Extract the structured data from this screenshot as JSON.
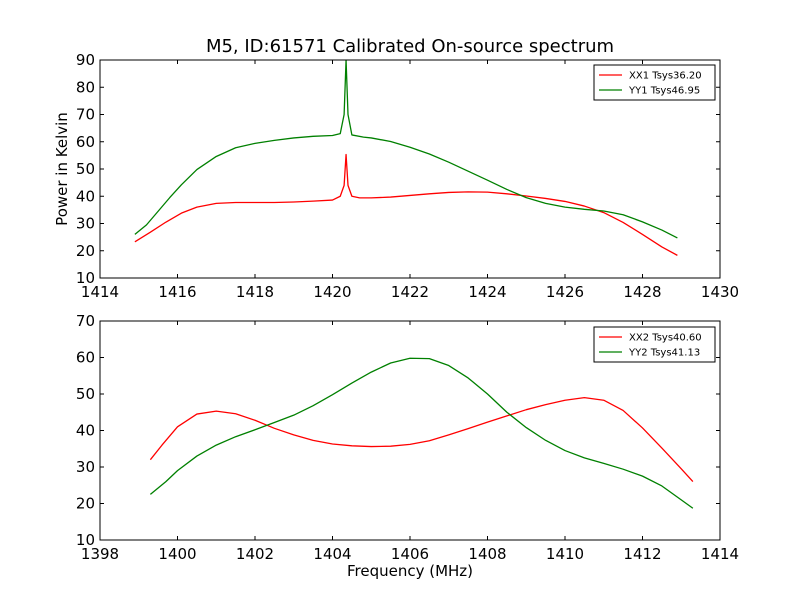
{
  "figure": {
    "title": "M5, ID:61571 Calibrated On-source spectrum"
  },
  "colors": {
    "red": "#ff0000",
    "green": "#008000"
  },
  "chart_data": [
    {
      "type": "line",
      "ylabel": "Power in Kelvin",
      "xlabel": "",
      "xlim": [
        1414,
        1430
      ],
      "ylim": [
        10,
        90
      ],
      "xticks": [
        1414,
        1416,
        1418,
        1420,
        1422,
        1424,
        1426,
        1428,
        1430
      ],
      "yticks": [
        10,
        20,
        30,
        40,
        50,
        60,
        70,
        80,
        90
      ],
      "grid": false,
      "legend": "top-right",
      "series": [
        {
          "name": "XX1 Tsys36.20",
          "color": "#ff0000",
          "points": [
            [
              1414.9,
              23.3
            ],
            [
              1415.3,
              26.8
            ],
            [
              1415.7,
              30.5
            ],
            [
              1416.1,
              33.8
            ],
            [
              1416.5,
              36.0
            ],
            [
              1417.0,
              37.4
            ],
            [
              1417.5,
              37.7
            ],
            [
              1418.0,
              37.7
            ],
            [
              1418.5,
              37.7
            ],
            [
              1419.0,
              37.9
            ],
            [
              1419.5,
              38.2
            ],
            [
              1420.0,
              38.6
            ],
            [
              1420.2,
              40.0
            ],
            [
              1420.3,
              44.0
            ],
            [
              1420.35,
              55.3
            ],
            [
              1420.4,
              44.0
            ],
            [
              1420.5,
              40.0
            ],
            [
              1420.7,
              39.4
            ],
            [
              1421.0,
              39.4
            ],
            [
              1421.5,
              39.7
            ],
            [
              1422.0,
              40.3
            ],
            [
              1422.5,
              40.9
            ],
            [
              1423.0,
              41.4
            ],
            [
              1423.5,
              41.6
            ],
            [
              1424.0,
              41.5
            ],
            [
              1424.5,
              40.9
            ],
            [
              1425.0,
              40.1
            ],
            [
              1425.5,
              39.2
            ],
            [
              1426.0,
              38.1
            ],
            [
              1426.5,
              36.4
            ],
            [
              1427.0,
              34.0
            ],
            [
              1427.5,
              30.4
            ],
            [
              1428.0,
              26.0
            ],
            [
              1428.5,
              21.4
            ],
            [
              1428.9,
              18.3
            ]
          ]
        },
        {
          "name": "YY1 Tsys46.95",
          "color": "#008000",
          "points": [
            [
              1414.9,
              26.0
            ],
            [
              1415.2,
              29.5
            ],
            [
              1415.5,
              34.5
            ],
            [
              1415.8,
              39.5
            ],
            [
              1416.1,
              44.2
            ],
            [
              1416.5,
              49.8
            ],
            [
              1417.0,
              54.6
            ],
            [
              1417.5,
              57.8
            ],
            [
              1418.0,
              59.4
            ],
            [
              1418.5,
              60.5
            ],
            [
              1419.0,
              61.4
            ],
            [
              1419.5,
              62.0
            ],
            [
              1420.0,
              62.3
            ],
            [
              1420.2,
              63.0
            ],
            [
              1420.3,
              70.0
            ],
            [
              1420.35,
              90.0
            ],
            [
              1420.4,
              70.0
            ],
            [
              1420.5,
              62.5
            ],
            [
              1420.8,
              61.7
            ],
            [
              1421.0,
              61.4
            ],
            [
              1421.5,
              60.1
            ],
            [
              1422.0,
              58.0
            ],
            [
              1422.5,
              55.5
            ],
            [
              1423.0,
              52.5
            ],
            [
              1423.5,
              49.2
            ],
            [
              1424.0,
              45.9
            ],
            [
              1424.5,
              42.5
            ],
            [
              1425.0,
              39.5
            ],
            [
              1425.5,
              37.4
            ],
            [
              1426.0,
              36.0
            ],
            [
              1426.5,
              35.2
            ],
            [
              1427.0,
              34.6
            ],
            [
              1427.5,
              33.2
            ],
            [
              1428.0,
              30.6
            ],
            [
              1428.5,
              27.6
            ],
            [
              1428.9,
              24.7
            ]
          ]
        }
      ]
    },
    {
      "type": "line",
      "ylabel": "",
      "xlabel": "Frequency (MHz)",
      "xlim": [
        1398,
        1414
      ],
      "ylim": [
        10,
        70
      ],
      "xticks": [
        1398,
        1400,
        1402,
        1404,
        1406,
        1408,
        1410,
        1412,
        1414
      ],
      "yticks": [
        10,
        20,
        30,
        40,
        50,
        60,
        70
      ],
      "grid": false,
      "legend": "top-right",
      "series": [
        {
          "name": "XX2 Tsys40.60",
          "color": "#ff0000",
          "points": [
            [
              1399.3,
              32.0
            ],
            [
              1399.6,
              36.0
            ],
            [
              1400.0,
              41.0
            ],
            [
              1400.5,
              44.5
            ],
            [
              1401.0,
              45.3
            ],
            [
              1401.5,
              44.6
            ],
            [
              1402.0,
              42.8
            ],
            [
              1402.5,
              40.6
            ],
            [
              1403.0,
              38.8
            ],
            [
              1403.5,
              37.3
            ],
            [
              1404.0,
              36.3
            ],
            [
              1404.5,
              35.8
            ],
            [
              1405.0,
              35.6
            ],
            [
              1405.5,
              35.7
            ],
            [
              1406.0,
              36.2
            ],
            [
              1406.5,
              37.2
            ],
            [
              1407.0,
              38.8
            ],
            [
              1407.5,
              40.5
            ],
            [
              1408.0,
              42.3
            ],
            [
              1408.5,
              44.0
            ],
            [
              1409.0,
              45.7
            ],
            [
              1409.5,
              47.1
            ],
            [
              1410.0,
              48.3
            ],
            [
              1410.5,
              49.0
            ],
            [
              1411.0,
              48.3
            ],
            [
              1411.5,
              45.5
            ],
            [
              1412.0,
              40.7
            ],
            [
              1412.5,
              35.2
            ],
            [
              1413.0,
              29.5
            ],
            [
              1413.3,
              26.0
            ]
          ]
        },
        {
          "name": "YY2 Tsys41.13",
          "color": "#008000",
          "points": [
            [
              1399.3,
              22.5
            ],
            [
              1399.7,
              26.0
            ],
            [
              1400.0,
              29.0
            ],
            [
              1400.5,
              33.0
            ],
            [
              1401.0,
              36.0
            ],
            [
              1401.5,
              38.3
            ],
            [
              1402.0,
              40.2
            ],
            [
              1402.5,
              42.2
            ],
            [
              1403.0,
              44.2
            ],
            [
              1403.5,
              46.8
            ],
            [
              1404.0,
              49.8
            ],
            [
              1404.5,
              53.0
            ],
            [
              1405.0,
              56.0
            ],
            [
              1405.5,
              58.5
            ],
            [
              1406.0,
              59.8
            ],
            [
              1406.5,
              59.7
            ],
            [
              1407.0,
              57.8
            ],
            [
              1407.5,
              54.4
            ],
            [
              1408.0,
              50.0
            ],
            [
              1408.5,
              45.0
            ],
            [
              1409.0,
              40.8
            ],
            [
              1409.5,
              37.3
            ],
            [
              1410.0,
              34.5
            ],
            [
              1410.5,
              32.5
            ],
            [
              1411.0,
              31.0
            ],
            [
              1411.5,
              29.4
            ],
            [
              1412.0,
              27.5
            ],
            [
              1412.5,
              24.8
            ],
            [
              1413.0,
              21.0
            ],
            [
              1413.3,
              18.7
            ]
          ]
        }
      ]
    }
  ]
}
